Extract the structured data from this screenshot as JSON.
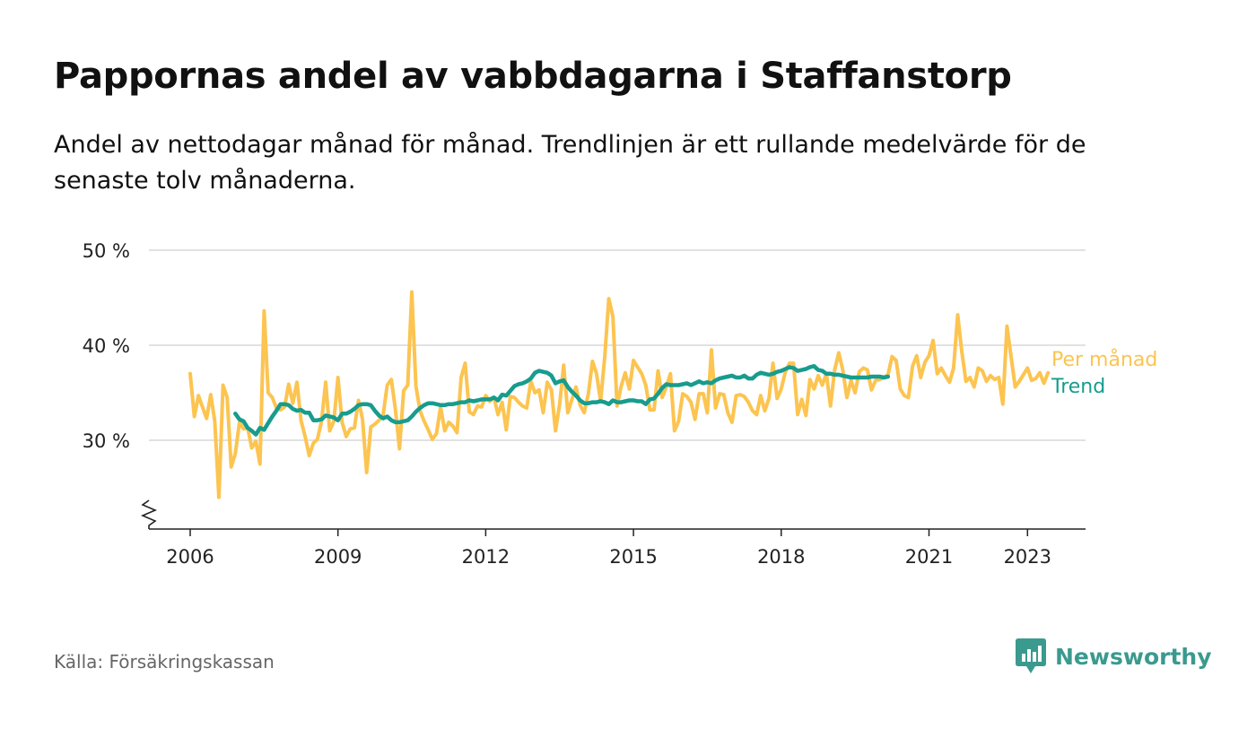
{
  "title": "Pappornas andel av vabbdagarna i Staffanstorp",
  "subtitle": "Andel av nettodagar månad för månad. Trendlinjen är ett rullande medelvärde för de senaste tolv månaderna.",
  "source": "Källa: Försäkringskassan",
  "brand": {
    "name": "Newsworthy",
    "icon": "newsworthy-logo-icon",
    "color": "#3a9a8e"
  },
  "chart_data": {
    "type": "line",
    "x_start": "2006-01",
    "x_end": "2023-06",
    "ylim": [
      21,
      50
    ],
    "y_ticks": [
      {
        "value": 30,
        "label": "30 %"
      },
      {
        "value": 40,
        "label": "40 %"
      },
      {
        "value": 50,
        "label": "50 %"
      }
    ],
    "x_ticks": [
      {
        "value": 2006,
        "label": "2006"
      },
      {
        "value": 2009,
        "label": "2009"
      },
      {
        "value": 2012,
        "label": "2012"
      },
      {
        "value": 2015,
        "label": "2015"
      },
      {
        "value": 2018,
        "label": "2018"
      },
      {
        "value": 2021,
        "label": "2021"
      },
      {
        "value": 2023,
        "label": "2023"
      }
    ],
    "grid": true,
    "axis_break": true,
    "series": [
      {
        "name": "Per månad",
        "color": "#fcc450",
        "start": "2006-01",
        "values": [
          37.0,
          32.5,
          34.7,
          33.5,
          32.3,
          34.8,
          32.0,
          24.0,
          35.8,
          34.5,
          27.2,
          28.6,
          31.9,
          31.2,
          31.3,
          29.2,
          29.9,
          27.5,
          43.6,
          35.0,
          34.5,
          33.4,
          33.2,
          33.5,
          35.9,
          33.9,
          36.1,
          32.1,
          30.4,
          28.4,
          29.7,
          30.1,
          32.0,
          36.1,
          31.0,
          32.0,
          36.6,
          31.9,
          30.4,
          31.2,
          31.3,
          34.2,
          32.2,
          26.6,
          31.4,
          31.7,
          32.1,
          32.6,
          35.8,
          36.4,
          33.2,
          29.1,
          35.2,
          35.8,
          45.6,
          35.7,
          33.1,
          32.0,
          31.1,
          30.1,
          30.7,
          33.5,
          31.0,
          31.9,
          31.5,
          30.8,
          36.6,
          38.1,
          33.0,
          32.7,
          33.6,
          33.5,
          34.7,
          34.1,
          34.5,
          32.7,
          34.0,
          31.1,
          34.6,
          34.5,
          34.0,
          33.6,
          33.4,
          36.2,
          35.0,
          35.3,
          32.9,
          36.1,
          35.3,
          31.0,
          33.8,
          37.9,
          32.9,
          34.3,
          35.6,
          33.7,
          32.9,
          34.9,
          38.3,
          37.0,
          34.1,
          38.8,
          44.9,
          43.0,
          33.6,
          35.7,
          37.1,
          35.4,
          38.4,
          37.7,
          37.0,
          35.8,
          33.2,
          33.2,
          37.3,
          34.5,
          35.6,
          37.0,
          31.0,
          32.0,
          34.9,
          34.6,
          34.0,
          32.2,
          34.9,
          34.9,
          32.9,
          39.5,
          33.4,
          34.9,
          34.8,
          32.9,
          31.9,
          34.7,
          34.8,
          34.6,
          34.0,
          33.1,
          32.7,
          34.7,
          33.1,
          34.4,
          38.1,
          34.4,
          35.4,
          37.2,
          38.1,
          38.1,
          32.7,
          34.3,
          32.6,
          36.4,
          35.4,
          36.8,
          35.8,
          37.0,
          33.6,
          37.4,
          39.2,
          37.4,
          34.5,
          36.3,
          35.0,
          37.2,
          37.6,
          37.4,
          35.3,
          36.3,
          36.4,
          36.6,
          36.9,
          38.8,
          38.4,
          35.4,
          34.7,
          34.5,
          37.8,
          38.9,
          36.6,
          38.2,
          38.9,
          40.5,
          37.0,
          37.6,
          36.8,
          36.1,
          37.6,
          43.2,
          39.3,
          36.2,
          36.6,
          35.6,
          37.6,
          37.3,
          36.2,
          36.8,
          36.4,
          36.6,
          33.8,
          42.0,
          38.8,
          35.6,
          36.2,
          36.9,
          37.6,
          36.3,
          36.5,
          37.1,
          36.0,
          37.1
        ]
      },
      {
        "name": "Trend",
        "color": "#179c8e",
        "start": "2006-12",
        "values": [
          32.8,
          32.2,
          32.0,
          31.3,
          31.0,
          30.6,
          31.3,
          31.1,
          31.8,
          32.5,
          33.1,
          33.8,
          33.8,
          33.7,
          33.3,
          33.1,
          33.2,
          32.9,
          32.9,
          32.1,
          32.1,
          32.2,
          32.6,
          32.5,
          32.4,
          32.1,
          32.8,
          32.8,
          33.0,
          33.3,
          33.7,
          33.8,
          33.8,
          33.7,
          33.1,
          32.6,
          32.3,
          32.5,
          32.1,
          31.9,
          31.9,
          32.0,
          32.1,
          32.5,
          33.0,
          33.4,
          33.7,
          33.9,
          33.9,
          33.8,
          33.7,
          33.7,
          33.8,
          33.8,
          33.9,
          34.0,
          34.0,
          34.2,
          34.1,
          34.2,
          34.3,
          34.3,
          34.3,
          34.5,
          34.2,
          34.8,
          34.7,
          35.2,
          35.7,
          35.9,
          36.0,
          36.2,
          36.5,
          37.1,
          37.3,
          37.2,
          37.1,
          36.8,
          36.0,
          36.2,
          36.3,
          35.6,
          35.1,
          34.7,
          34.2,
          33.9,
          33.9,
          34.0,
          34.0,
          34.1,
          34.0,
          33.8,
          34.2,
          34.0,
          34.0,
          34.1,
          34.2,
          34.2,
          34.1,
          34.1,
          33.8,
          34.3,
          34.4,
          34.9,
          35.5,
          35.9,
          35.8,
          35.8,
          35.8,
          35.9,
          36.0,
          35.8,
          36.0,
          36.2,
          36.0,
          36.1,
          36.0,
          36.3,
          36.5,
          36.6,
          36.7,
          36.8,
          36.6,
          36.6,
          36.8,
          36.5,
          36.5,
          36.9,
          37.1,
          37.0,
          36.9,
          37.0,
          37.2,
          37.3,
          37.5,
          37.7,
          37.6,
          37.3,
          37.4,
          37.5,
          37.7,
          37.8,
          37.4,
          37.3,
          37.0,
          37.0,
          36.9,
          36.9,
          36.8,
          36.7,
          36.6,
          36.6,
          36.6,
          36.6,
          36.6,
          36.7,
          36.7,
          36.7,
          36.6,
          36.7
        ]
      }
    ]
  }
}
